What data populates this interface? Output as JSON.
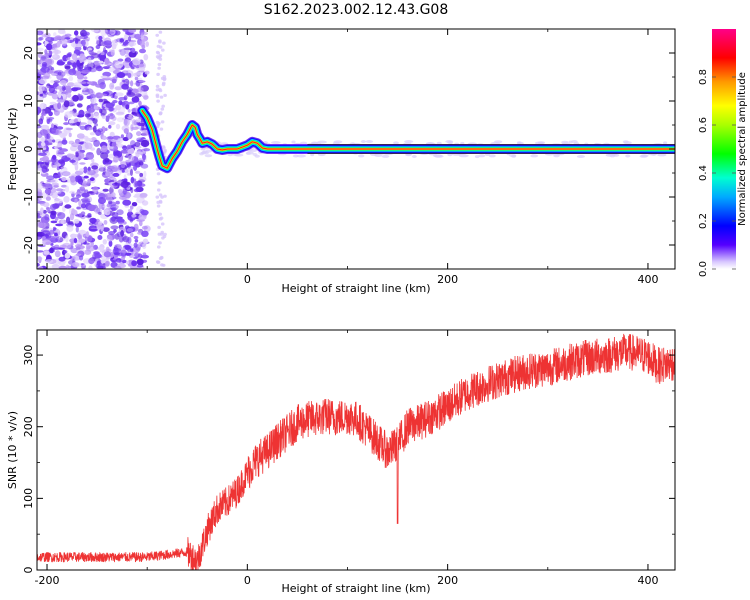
{
  "title": "S162.2023.002.12.43.G08",
  "chart_data": [
    {
      "type": "heatmap",
      "xlabel": "Height of straight line (km)",
      "ylabel": "Frequency (Hz)",
      "colorbar_label": "Normalized spectral amplitude",
      "xlim": [
        -210,
        427
      ],
      "ylim": [
        -25,
        25
      ],
      "clim": [
        0,
        1
      ],
      "x_ticks": [
        -200,
        0,
        200,
        400
      ],
      "y_ticks": [
        -20,
        -10,
        0,
        10,
        20
      ],
      "colorbar_ticks": [
        0.0,
        0.2,
        0.4,
        0.6,
        0.8
      ],
      "colormap": [
        "#ffffff",
        "#5500ff",
        "#0000ff",
        "#00e5ff",
        "#00ff00",
        "#ffff00",
        "#ff8000",
        "#ff0000",
        "#ff0080"
      ],
      "ridge": {
        "x": [
          -105,
          -100,
          -95,
          -90,
          -88,
          -85,
          -80,
          -75,
          -70,
          -65,
          -60,
          -57,
          -55,
          -52,
          -50,
          -47,
          -45,
          -40,
          -35,
          -30,
          -25,
          -20,
          -10,
          0,
          5,
          10,
          15,
          20,
          30,
          40,
          60,
          100,
          200,
          300,
          427
        ],
        "y": [
          8,
          6.5,
          4,
          0,
          -1.5,
          -3.5,
          -4,
          -2,
          -0.5,
          1.5,
          3,
          4.2,
          5,
          4.5,
          3,
          2,
          1.2,
          1.5,
          1,
          0,
          -0.2,
          0,
          0,
          0.8,
          1.5,
          1.2,
          0.2,
          0,
          0,
          0,
          0,
          0,
          0,
          0,
          0
        ]
      }
    },
    {
      "type": "line",
      "xlabel": "Height of straight line (km)",
      "ylabel": "SNR (10 * v/v)",
      "xlim": [
        -210,
        427
      ],
      "ylim": [
        0,
        335
      ],
      "x_ticks": [
        -200,
        0,
        200,
        400
      ],
      "y_ticks": [
        0,
        100,
        200,
        300
      ],
      "color": "#ee3333",
      "series": [
        {
          "x": [
            -210,
            -150,
            -100,
            -60,
            -50,
            -40,
            -30,
            -20,
            -10,
            0,
            10,
            20,
            30,
            40,
            50,
            60,
            70,
            80,
            90,
            100,
            110,
            120,
            130,
            140,
            150,
            160,
            170,
            180,
            200,
            220,
            240,
            260,
            280,
            300,
            320,
            340,
            360,
            380,
            400,
            410,
            427
          ],
          "y": [
            18,
            18,
            18,
            25,
            12,
            55,
            85,
            95,
            110,
            135,
            155,
            165,
            180,
            192,
            205,
            210,
            212,
            215,
            212,
            215,
            210,
            195,
            180,
            165,
            175,
            200,
            205,
            212,
            228,
            248,
            260,
            270,
            278,
            282,
            290,
            296,
            300,
            305,
            298,
            285,
            290
          ]
        }
      ],
      "dip": {
        "x": 150,
        "y": 65
      }
    }
  ]
}
